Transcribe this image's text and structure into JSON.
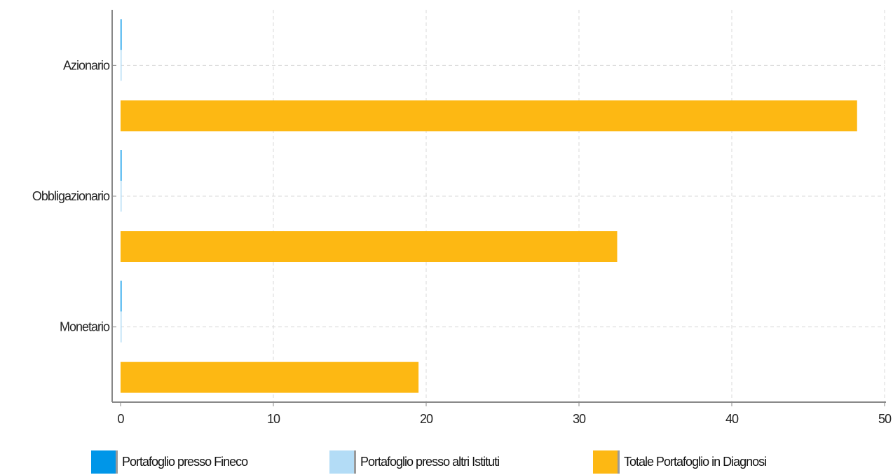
{
  "chart_data": {
    "type": "bar",
    "orientation": "horizontal",
    "categories": [
      "Azionario",
      "Obbligazionario",
      "Monetario"
    ],
    "series": [
      {
        "name": "Portafoglio presso Fineco",
        "values": [
          0,
          0,
          0
        ],
        "color": "#0096e8"
      },
      {
        "name": "Portafoglio presso altri Istituti",
        "values": [
          0,
          0,
          0
        ],
        "color": "#b3dcf6"
      },
      {
        "name": "Totale Portafoglio in Diagnosi",
        "values": [
          48.2,
          32.5,
          19.5
        ],
        "color": "#fdb813"
      }
    ],
    "xlim": [
      0,
      50
    ],
    "xticks": [
      0,
      10,
      20,
      30,
      40,
      50
    ],
    "grid": true,
    "legend_position": "bottom",
    "title": "",
    "xlabel": "",
    "ylabel": ""
  },
  "legend": {
    "items": [
      {
        "label": "Portafoglio presso Fineco",
        "color": "#0096e8"
      },
      {
        "label": "Portafoglio presso altri Istituti",
        "color": "#b3dcf6"
      },
      {
        "label": "Totale Portafoglio in Diagnosi",
        "color": "#fdb813"
      }
    ]
  }
}
